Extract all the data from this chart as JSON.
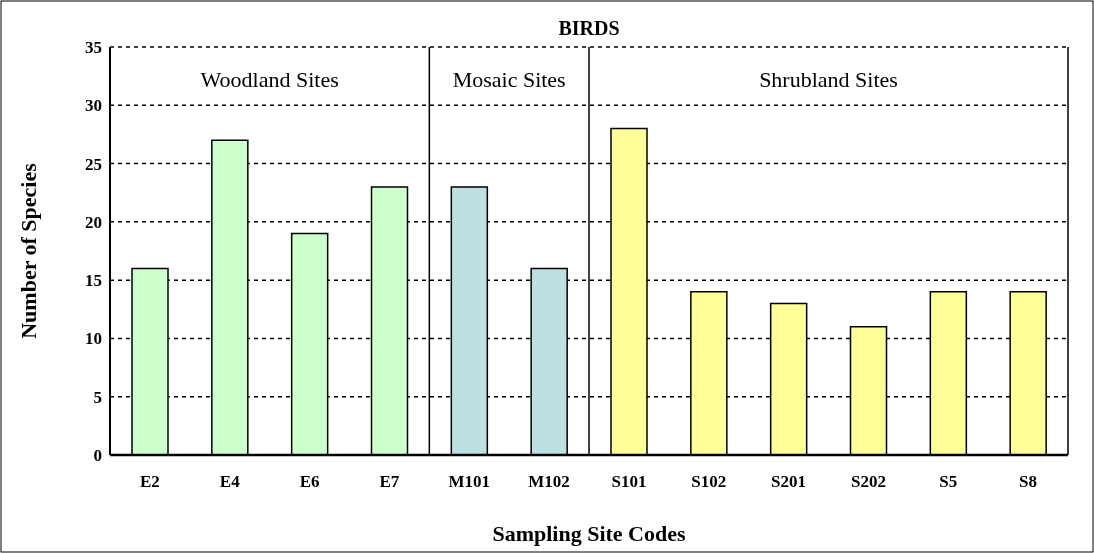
{
  "chart_data": {
    "type": "bar",
    "title": "BIRDS",
    "xlabel": "Sampling Site Codes",
    "ylabel": "Number of Species",
    "categories": [
      "E2",
      "E4",
      "E6",
      "E7",
      "M101",
      "M102",
      "S101",
      "S102",
      "S201",
      "S202",
      "S5",
      "S8"
    ],
    "values": [
      16,
      27,
      19,
      23,
      23,
      16,
      28,
      14,
      13,
      11,
      14,
      14
    ],
    "colors": [
      "#ccffcc",
      "#ccffcc",
      "#ccffcc",
      "#ccffcc",
      "#bde0e2",
      "#bde0e2",
      "#ffff99",
      "#ffff99",
      "#ffff99",
      "#ffff99",
      "#ffff99",
      "#ffff99"
    ],
    "ylim": [
      0,
      35
    ],
    "yticks": [
      0,
      5,
      10,
      15,
      20,
      25,
      30,
      35
    ],
    "grid": "y",
    "annotations": [
      "Woodland Sites",
      "Mosaic Sites",
      "Shrubland Sites"
    ]
  }
}
